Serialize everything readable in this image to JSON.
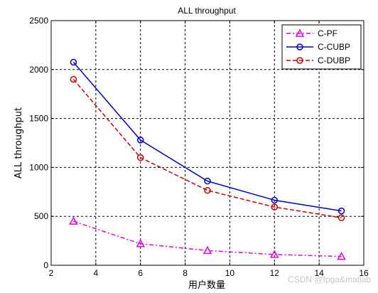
{
  "chart_data": {
    "type": "line",
    "title": "ALL throughput",
    "xlabel": "用户数量",
    "ylabel": "ALL throughput",
    "xlim": [
      2,
      16
    ],
    "ylim": [
      0,
      2500
    ],
    "xticks": [
      2,
      4,
      6,
      8,
      10,
      12,
      14,
      16
    ],
    "yticks": [
      0,
      500,
      1000,
      1500,
      2000,
      2500
    ],
    "grid": true,
    "legend_position": "top-right",
    "x": [
      3,
      6,
      9,
      12,
      15
    ],
    "series": [
      {
        "name": "C-PF",
        "values": [
          450,
          220,
          150,
          110,
          90
        ],
        "color": "#e600e6",
        "linestyle": "dashdot",
        "marker": "triangle"
      },
      {
        "name": "C-CUBP",
        "values": [
          2075,
          1280,
          860,
          665,
          555
        ],
        "color": "#0000cc",
        "linestyle": "solid",
        "marker": "circle"
      },
      {
        "name": "C-DUBP",
        "values": [
          1900,
          1100,
          765,
          595,
          485
        ],
        "color": "#cc0000",
        "linestyle": "dashed",
        "marker": "circle"
      }
    ]
  },
  "watermark": "CSDN @fpga&matlab"
}
